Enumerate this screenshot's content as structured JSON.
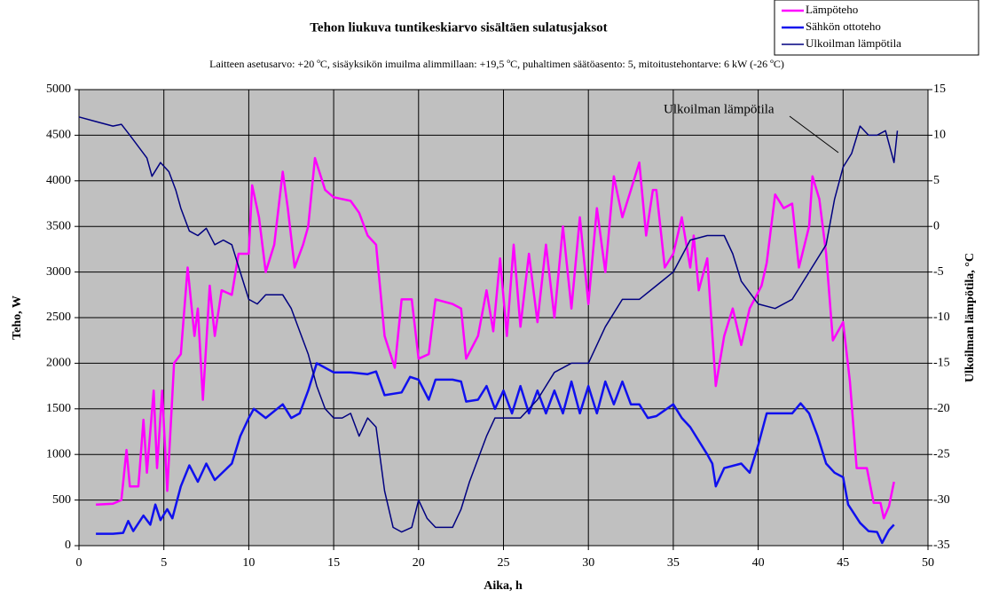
{
  "chart_data": {
    "type": "line",
    "title": "Tehon liukuva tuntikeskiarvo sisältäen sulatusjaksot",
    "subtitle": "Laitteen asetusarvo: +20 ºC, sisäyksikön imuilma alimmillaan: +19,5 ºC, puhaltimen säätöasento: 5, mitoitustehontarve: 6 kW (-26 ºC)",
    "x_label": "Aika, h",
    "y_label": "Teho, W",
    "y2_label": "Ulkoilman lämpötila, °C",
    "annotation": "Ulkoilman lämpötila",
    "xlim": [
      0,
      50
    ],
    "xticks": [
      0,
      5,
      10,
      15,
      20,
      25,
      30,
      35,
      40,
      45,
      50
    ],
    "ylim": [
      0,
      5000
    ],
    "yticks": [
      0,
      500,
      1000,
      1500,
      2000,
      2500,
      3000,
      3500,
      4000,
      4500,
      5000
    ],
    "y2lim": [
      -35,
      15
    ],
    "y2ticks": [
      -35,
      -30,
      -25,
      -20,
      -15,
      -10,
      -5,
      0,
      5,
      10,
      15
    ],
    "grid": true,
    "legend": "top-right",
    "background": "#c0c0c0",
    "series": [
      {
        "name": "Lämpöteho",
        "color": "#ff00ff",
        "width": 2.5,
        "x": [
          1,
          2,
          2.5,
          2.8,
          3,
          3.5,
          3.8,
          4,
          4.4,
          4.6,
          4.9,
          5.2,
          5.6,
          6,
          6.4,
          6.8,
          7,
          7.3,
          7.7,
          8,
          8.4,
          9,
          9.4,
          10,
          10.2,
          10.6,
          11,
          11.5,
          12,
          12.3,
          12.7,
          13.2,
          13.5,
          13.9,
          14.5,
          15,
          16,
          16.5,
          17,
          17.5,
          18,
          18.6,
          19,
          19.6,
          20,
          20.6,
          21,
          22,
          22.5,
          22.8,
          23.5,
          24,
          24.4,
          24.8,
          25.2,
          25.6,
          26,
          26.5,
          27,
          27.5,
          28,
          28.5,
          29,
          29.5,
          30,
          30.5,
          31,
          31.5,
          32,
          32.5,
          33,
          33.4,
          33.8,
          34,
          34.5,
          35,
          35.5,
          36,
          36.2,
          36.5,
          37,
          37.5,
          38,
          38.5,
          39,
          39.5,
          40.2,
          40.5,
          41,
          41.5,
          42,
          42.4,
          43,
          43.2,
          43.6,
          44,
          44.4,
          45,
          45.4,
          45.8,
          46.4,
          46.8,
          47.2,
          47.4,
          47.7,
          48
        ],
        "values": [
          450,
          460,
          500,
          1050,
          650,
          650,
          1380,
          800,
          1700,
          850,
          1700,
          600,
          2000,
          2100,
          3050,
          2300,
          2600,
          1600,
          2850,
          2300,
          2800,
          2750,
          3200,
          3200,
          3950,
          3600,
          3000,
          3300,
          4100,
          3700,
          3050,
          3300,
          3500,
          4250,
          3900,
          3820,
          3780,
          3650,
          3400,
          3300,
          2300,
          1950,
          2700,
          2700,
          2050,
          2100,
          2700,
          2650,
          2600,
          2050,
          2300,
          2800,
          2350,
          3150,
          2300,
          3300,
          2400,
          3200,
          2450,
          3300,
          2500,
          3500,
          2600,
          3600,
          2650,
          3700,
          3000,
          4050,
          3600,
          3900,
          4200,
          3400,
          3900,
          3900,
          3050,
          3200,
          3600,
          3050,
          3400,
          2800,
          3150,
          1750,
          2300,
          2600,
          2200,
          2600,
          2850,
          3100,
          3850,
          3700,
          3750,
          3050,
          3500,
          4050,
          3800,
          3200,
          2250,
          2450,
          1800,
          850,
          850,
          470,
          470,
          300,
          430,
          700
        ]
      },
      {
        "name": "Sähkön ottoteho",
        "color": "#1010ee",
        "width": 2.5,
        "x": [
          1,
          2,
          2.6,
          2.9,
          3.2,
          3.8,
          4.2,
          4.5,
          4.8,
          5.2,
          5.5,
          6,
          6.5,
          7,
          7.5,
          8,
          9,
          9.5,
          10,
          10.3,
          11,
          12,
          12.5,
          13,
          13.5,
          14,
          15,
          16,
          17,
          17.5,
          18,
          19,
          19.5,
          20,
          20.6,
          21,
          22,
          22.5,
          22.8,
          23.5,
          24,
          24.5,
          25,
          25.5,
          26,
          26.5,
          27,
          27.5,
          28,
          28.5,
          29,
          29.5,
          30,
          30.5,
          31,
          31.5,
          32,
          32.5,
          33,
          33.5,
          34,
          35,
          35.5,
          36,
          37,
          37.3,
          37.5,
          38,
          39,
          39.5,
          40,
          40.5,
          41,
          42,
          42.5,
          43,
          43.5,
          44,
          44.5,
          45,
          45.3,
          46,
          46.5,
          47,
          47.3,
          47.7,
          48
        ],
        "values": [
          130,
          130,
          140,
          270,
          160,
          330,
          230,
          450,
          280,
          400,
          300,
          650,
          880,
          700,
          900,
          720,
          900,
          1200,
          1400,
          1500,
          1400,
          1550,
          1400,
          1450,
          1700,
          2000,
          1900,
          1900,
          1880,
          1910,
          1650,
          1680,
          1850,
          1820,
          1600,
          1820,
          1820,
          1800,
          1580,
          1600,
          1750,
          1500,
          1700,
          1450,
          1750,
          1450,
          1700,
          1450,
          1700,
          1450,
          1800,
          1450,
          1750,
          1450,
          1800,
          1550,
          1800,
          1550,
          1550,
          1400,
          1420,
          1550,
          1400,
          1300,
          1000,
          900,
          650,
          850,
          900,
          800,
          1100,
          1450,
          1450,
          1450,
          1560,
          1450,
          1200,
          900,
          800,
          750,
          450,
          250,
          160,
          150,
          30,
          170,
          230
        ]
      },
      {
        "name": "Ulkoilman lämpötila",
        "color": "#000080",
        "width": 1.5,
        "axis": "y2",
        "x": [
          0,
          1,
          2,
          2.5,
          3,
          4,
          4.3,
          4.8,
          5.3,
          5.7,
          6,
          6.5,
          7,
          7.5,
          8,
          8.5,
          9,
          9.5,
          10,
          10.5,
          11,
          12,
          12.5,
          13,
          13.5,
          14,
          14.5,
          15,
          15.5,
          16,
          16.5,
          17,
          17.5,
          18,
          18.5,
          19,
          19.6,
          20,
          20.5,
          21,
          22,
          22.5,
          23,
          24,
          24.5,
          25,
          26,
          27,
          28,
          29,
          30,
          30.5,
          31,
          32,
          33,
          34,
          35,
          36,
          37,
          38,
          38.5,
          39,
          40,
          41,
          42,
          43,
          44,
          44.5,
          45,
          45.5,
          46,
          46.5,
          47,
          47.5,
          48,
          48.2
        ],
        "values": [
          12,
          11.5,
          11,
          11.2,
          10,
          7.5,
          5.5,
          7,
          6,
          4,
          2,
          -0.5,
          -1,
          -0.2,
          -2,
          -1.5,
          -2,
          -5,
          -8,
          -8.5,
          -7.5,
          -7.5,
          -9,
          -11.5,
          -14,
          -17.5,
          -20,
          -21,
          -21,
          -20.5,
          -23,
          -21,
          -22,
          -29,
          -33,
          -33.5,
          -33,
          -30,
          -32,
          -33,
          -33,
          -31,
          -28,
          -23,
          -21,
          -21,
          -21,
          -19,
          -16,
          -15,
          -15,
          -13,
          -11,
          -8,
          -8,
          -6.5,
          -5,
          -1.5,
          -1,
          -1,
          -3,
          -6,
          -8.5,
          -9,
          -8,
          -5,
          -2,
          3,
          6.5,
          8,
          11,
          10,
          10,
          10.5,
          7,
          10.5
        ]
      }
    ]
  }
}
